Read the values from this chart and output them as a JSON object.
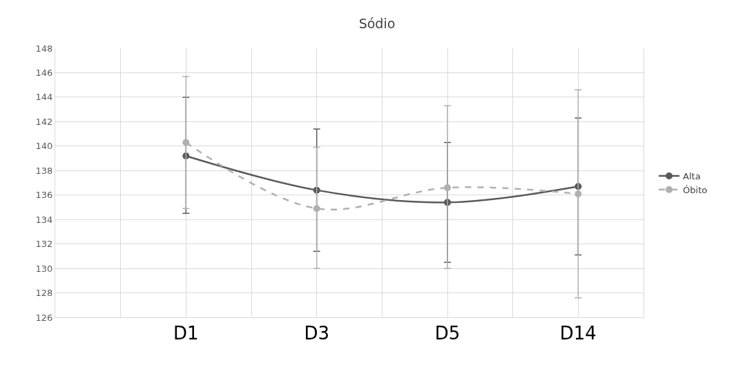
{
  "chart_data": {
    "type": "line",
    "title": "Sódio",
    "categories": [
      null,
      null,
      "D1",
      null,
      "D3",
      null,
      "D5",
      null,
      "D14",
      null
    ],
    "ylim": [
      126,
      148
    ],
    "yticks": [
      126,
      128,
      130,
      132,
      134,
      136,
      138,
      140,
      142,
      144,
      146,
      148
    ],
    "series": [
      {
        "name": "Alta",
        "color": "#595959",
        "values": [
          null,
          null,
          139.2,
          null,
          136.4,
          null,
          135.4,
          null,
          136.7,
          null
        ],
        "errors": [
          null,
          null,
          [
            134.5,
            144.0
          ],
          null,
          [
            131.4,
            141.4
          ],
          null,
          [
            130.5,
            140.3
          ],
          null,
          [
            131.1,
            142.3
          ],
          null
        ],
        "line_style": "solid"
      },
      {
        "name": "Óbito",
        "color": "#b0b0b0",
        "values": [
          null,
          null,
          140.3,
          null,
          134.9,
          null,
          136.6,
          null,
          136.1,
          null
        ],
        "errors": [
          null,
          null,
          [
            134.9,
            145.7
          ],
          null,
          [
            130.0,
            139.9
          ],
          null,
          [
            130.0,
            143.3
          ],
          null,
          [
            127.6,
            144.6
          ],
          null
        ],
        "line_style": "dashed"
      }
    ],
    "marker": "circle",
    "grid": true,
    "legend": "right"
  }
}
